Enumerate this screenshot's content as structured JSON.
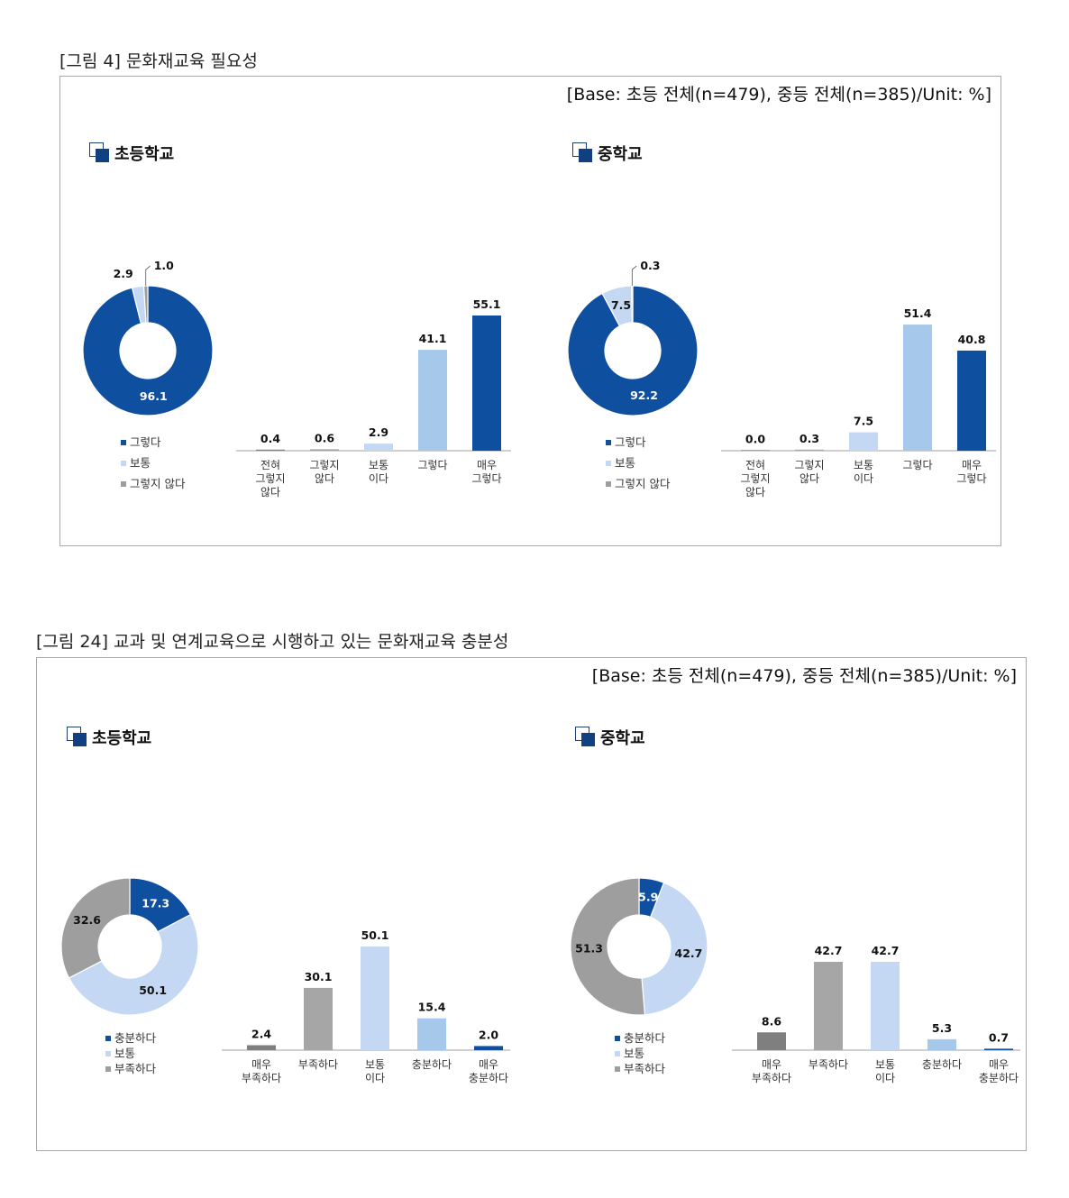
{
  "figures": [
    {
      "caption": "[그림 4] 문화재교육 필요성",
      "base_note": "[Base: 초등 전체(n=479), 중등 전체(n=385)/Unit: %]",
      "panels": [
        {
          "title": "초등학교",
          "donut": {
            "labels": [
              "96.1",
              "2.9",
              "1.0"
            ],
            "values": [
              96.1,
              2.9,
              1.0
            ],
            "colors": [
              "#0f4fa0",
              "#c5d8f3",
              "#9e9e9e"
            ],
            "legend": [
              "그렇다",
              "보통",
              "그렇지 않다"
            ]
          },
          "bars": {
            "categories": [
              "전혀\n그렇지\n않다",
              "그렇지\n않다",
              "보통\n이다",
              "그렇다",
              "매우\n그렇다"
            ],
            "values": [
              0.4,
              0.6,
              2.9,
              41.1,
              55.1
            ],
            "value_labels": [
              "0.4",
              "0.6",
              "2.9",
              "41.1",
              "55.1"
            ],
            "colors": [
              "#7f7f7f",
              "#a6a6a6",
              "#c5d8f3",
              "#a6c8ea",
              "#0f4fa0"
            ]
          }
        },
        {
          "title": "중학교",
          "donut": {
            "labels": [
              "92.2",
              "7.5",
              "0.3"
            ],
            "values": [
              92.2,
              7.5,
              0.3
            ],
            "colors": [
              "#0f4fa0",
              "#c5d8f3",
              "#9e9e9e"
            ],
            "legend": [
              "그렇다",
              "보통",
              "그렇지 않다"
            ]
          },
          "bars": {
            "categories": [
              "전혀\n그렇지\n않다",
              "그렇지\n않다",
              "보통\n이다",
              "그렇다",
              "매우\n그렇다"
            ],
            "values": [
              0.0,
              0.3,
              7.5,
              51.4,
              40.8
            ],
            "value_labels": [
              "0.0",
              "0.3",
              "7.5",
              "51.4",
              "40.8"
            ],
            "colors": [
              "#7f7f7f",
              "#a6a6a6",
              "#c5d8f3",
              "#a6c8ea",
              "#0f4fa0"
            ]
          }
        }
      ]
    },
    {
      "caption": "[그림 24] 교과 및 연계교육으로 시행하고 있는 문화재교육 충분성",
      "base_note": "[Base: 초등 전체(n=479), 중등 전체(n=385)/Unit: %]",
      "panels": [
        {
          "title": "초등학교",
          "donut": {
            "labels": [
              "17.3",
              "50.1",
              "32.6"
            ],
            "values": [
              17.3,
              50.1,
              32.6
            ],
            "colors": [
              "#0f4fa0",
              "#c5d8f3",
              "#9e9e9e"
            ],
            "legend": [
              "충분하다",
              "보통",
              "부족하다"
            ]
          },
          "bars": {
            "categories": [
              "매우\n부족하다",
              "부족하다",
              "보통\n이다",
              "충분하다",
              "매우\n충분하다"
            ],
            "values": [
              2.4,
              30.1,
              50.1,
              15.4,
              2.0
            ],
            "value_labels": [
              "2.4",
              "30.1",
              "50.1",
              "15.4",
              "2.0"
            ],
            "colors": [
              "#7f7f7f",
              "#a6a6a6",
              "#c5d8f3",
              "#a6c8ea",
              "#0f4fa0"
            ]
          }
        },
        {
          "title": "중학교",
          "donut": {
            "labels": [
              "5.9",
              "42.7",
              "51.3"
            ],
            "values": [
              5.9,
              42.7,
              51.3
            ],
            "colors": [
              "#0f4fa0",
              "#c5d8f3",
              "#9e9e9e"
            ],
            "legend": [
              "충분하다",
              "보통",
              "부족하다"
            ]
          },
          "bars": {
            "categories": [
              "매우\n부족하다",
              "부족하다",
              "보통\n이다",
              "충분하다",
              "매우\n충분하다"
            ],
            "values": [
              8.6,
              42.7,
              42.7,
              5.3,
              0.7
            ],
            "value_labels": [
              "8.6",
              "42.7",
              "42.7",
              "5.3",
              "0.7"
            ],
            "colors": [
              "#7f7f7f",
              "#a6a6a6",
              "#c5d8f3",
              "#a6c8ea",
              "#0f4fa0"
            ]
          }
        }
      ]
    }
  ],
  "chart_data": [
    {
      "type": "pie",
      "title": "초등학교",
      "labels": [
        "그렇다",
        "보통",
        "그렇지 않다"
      ],
      "values": [
        96.1,
        2.9,
        1.0
      ]
    },
    {
      "type": "bar",
      "title": "초등학교",
      "categories": [
        "전혀 그렇지 않다",
        "그렇지 않다",
        "보통이다",
        "그렇다",
        "매우 그렇다"
      ],
      "values": [
        0.4,
        0.6,
        2.9,
        41.1,
        55.1
      ]
    },
    {
      "type": "pie",
      "title": "중학교",
      "labels": [
        "그렇다",
        "보통",
        "그렇지 않다"
      ],
      "values": [
        92.2,
        7.5,
        0.3
      ]
    },
    {
      "type": "bar",
      "title": "중학교",
      "categories": [
        "전혀 그렇지 않다",
        "그렇지 않다",
        "보통이다",
        "그렇다",
        "매우 그렇다"
      ],
      "values": [
        0.0,
        0.3,
        7.5,
        51.4,
        40.8
      ]
    },
    {
      "type": "pie",
      "title": "초등학교",
      "labels": [
        "충분하다",
        "보통",
        "부족하다"
      ],
      "values": [
        17.3,
        50.1,
        32.6
      ]
    },
    {
      "type": "bar",
      "title": "초등학교",
      "categories": [
        "매우 부족하다",
        "부족하다",
        "보통이다",
        "충분하다",
        "매우 충분하다"
      ],
      "values": [
        2.4,
        30.1,
        50.1,
        15.4,
        2.0
      ]
    },
    {
      "type": "pie",
      "title": "중학교",
      "labels": [
        "충분하다",
        "보통",
        "부족하다"
      ],
      "values": [
        5.9,
        42.7,
        51.3
      ]
    },
    {
      "type": "bar",
      "title": "중학교",
      "categories": [
        "매우 부족하다",
        "부족하다",
        "보통이다",
        "충분하다",
        "매우 충분하다"
      ],
      "values": [
        8.6,
        42.7,
        42.7,
        5.3,
        0.7
      ]
    }
  ]
}
